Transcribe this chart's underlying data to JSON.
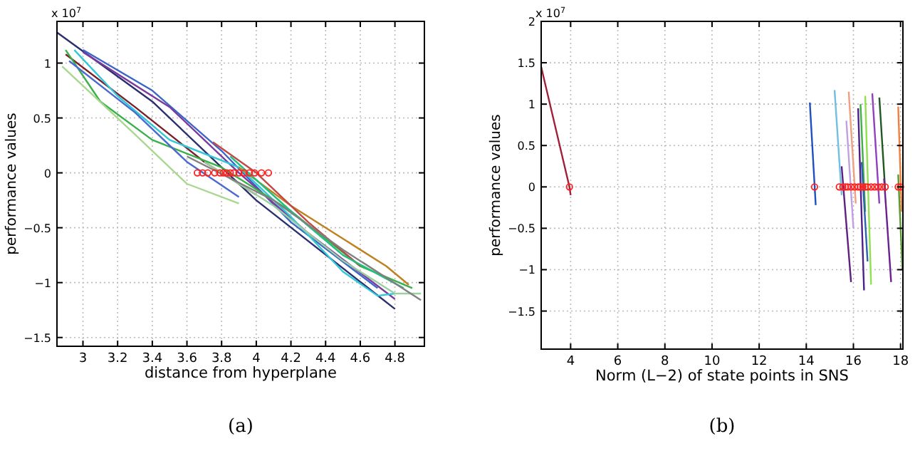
{
  "chart_data": [
    {
      "type": "line",
      "xlabel": "distance from hyperplane",
      "ylabel": "performance values",
      "annotations": [
        "x 10$^{7}$",
        "(a)"
      ],
      "xlim": [
        2.85,
        4.97
      ],
      "ylim": [
        -1.58,
        1.38
      ],
      "xticks": [
        3,
        3.2,
        3.4,
        3.6,
        3.8,
        4,
        4.2,
        4.4,
        4.6,
        4.8
      ],
      "yticks": [
        -1.5,
        -1,
        -0.5,
        0,
        0.5,
        1
      ],
      "grid": true,
      "line_style": "solid",
      "series": [
        {
          "color": "#2b2f6e",
          "x": [
            2.85,
            3.4,
            4.0,
            4.8
          ],
          "values": [
            1.28,
            0.65,
            -0.25,
            -1.24
          ]
        },
        {
          "color": "#3a66c8",
          "x": [
            3.0,
            3.4,
            3.8,
            4.2,
            4.7
          ],
          "values": [
            1.12,
            0.75,
            0.2,
            -0.45,
            -1.05
          ]
        },
        {
          "color": "#7a3aa0",
          "x": [
            3.0,
            3.5,
            3.9,
            4.3,
            4.8
          ],
          "values": [
            1.1,
            0.6,
            0.0,
            -0.55,
            -1.15
          ]
        },
        {
          "color": "#7a1f2a",
          "x": [
            2.9,
            3.3,
            3.7,
            4.0
          ],
          "values": [
            1.08,
            0.6,
            0.1,
            -0.2
          ]
        },
        {
          "color": "#30c8d8",
          "x": [
            2.95,
            3.2,
            3.5,
            3.9,
            4.2,
            4.5,
            4.7,
            4.8
          ],
          "values": [
            1.12,
            0.7,
            0.3,
            0.05,
            -0.4,
            -0.9,
            -1.12,
            -1.1
          ]
        },
        {
          "color": "#3ab04a",
          "x": [
            2.9,
            3.1,
            3.4,
            3.8,
            4.2,
            4.6,
            4.9
          ],
          "values": [
            1.12,
            0.65,
            0.3,
            0.05,
            -0.35,
            -0.85,
            -1.05
          ]
        },
        {
          "color": "#c08020",
          "x": [
            3.9,
            4.2,
            4.5,
            4.75,
            4.88
          ],
          "values": [
            0.05,
            -0.3,
            -0.6,
            -0.85,
            -1.02
          ]
        },
        {
          "color": "#a8d890",
          "x": [
            2.88,
            3.3,
            3.6,
            3.9
          ],
          "values": [
            0.97,
            0.35,
            -0.1,
            -0.28
          ]
        },
        {
          "color": "#9ad0a0",
          "x": [
            3.7,
            4.1,
            4.5,
            4.8,
            4.95
          ],
          "values": [
            0.1,
            -0.3,
            -0.8,
            -1.1,
            -1.1
          ]
        },
        {
          "color": "#4a6ad0",
          "x": [
            2.92,
            3.3,
            3.6,
            3.9
          ],
          "values": [
            1.02,
            0.55,
            0.1,
            -0.22
          ]
        },
        {
          "color": "#c04848",
          "x": [
            3.75,
            4.0,
            4.3,
            4.6
          ],
          "values": [
            0.28,
            0.0,
            -0.45,
            -0.85
          ]
        },
        {
          "color": "#20c080",
          "x": [
            3.85,
            4.2,
            4.5,
            4.85
          ],
          "values": [
            0.15,
            -0.35,
            -0.75,
            -1.05
          ]
        },
        {
          "color": "#808080",
          "x": [
            3.6,
            4.1,
            4.5,
            4.95
          ],
          "values": [
            0.15,
            -0.25,
            -0.7,
            -1.16
          ]
        },
        {
          "type": "scatter",
          "marker": "circle",
          "color": "#ff2020",
          "x": [
            3.66,
            3.69,
            3.72,
            3.76,
            3.79,
            3.81,
            3.83,
            3.85,
            3.87,
            3.9,
            3.93,
            3.96,
            3.99,
            4.03,
            4.07
          ],
          "values": [
            0,
            0,
            0,
            0,
            0,
            0,
            0,
            0,
            0,
            0,
            0,
            0,
            0,
            0,
            0
          ]
        }
      ]
    },
    {
      "type": "line",
      "xlabel": "Norm (L−2) of state points in SNS",
      "ylabel": "performance values",
      "annotations": [
        "x 10$^{7}$",
        "(b)"
      ],
      "xlim": [
        2.75,
        18.1
      ],
      "ylim": [
        -1.96,
        2
      ],
      "xticks": [
        4,
        6,
        8,
        10,
        12,
        14,
        16,
        18
      ],
      "yticks": [
        -1.5,
        -1,
        -0.5,
        0,
        0.5,
        1,
        1.5,
        2
      ],
      "grid": true,
      "line_style": "solid",
      "series": [
        {
          "color": "#a0203a",
          "x": [
            2.75,
            3.95,
            4.0
          ],
          "values": [
            1.45,
            0.0,
            -0.1
          ]
        },
        {
          "color": "#2050c0",
          "x": [
            14.15,
            14.4
          ],
          "values": [
            1.02,
            -0.22
          ]
        },
        {
          "color": "#70c0e0",
          "x": [
            15.2,
            15.5
          ],
          "values": [
            1.17,
            -0.1
          ]
        },
        {
          "color": "#602080",
          "x": [
            15.5,
            15.9
          ],
          "values": [
            0.25,
            -1.15
          ]
        },
        {
          "color": "#f0a080",
          "x": [
            15.8,
            16.1
          ],
          "values": [
            1.15,
            -0.2
          ]
        },
        {
          "color": "#c0a0e0",
          "x": [
            15.7,
            16.0
          ],
          "values": [
            0.8,
            -0.5
          ]
        },
        {
          "color": "#50208a",
          "x": [
            16.2,
            16.45
          ],
          "values": [
            0.95,
            -1.25
          ]
        },
        {
          "color": "#40b040",
          "x": [
            16.3,
            16.5
          ],
          "values": [
            1.0,
            -0.3
          ]
        },
        {
          "color": "#90e050",
          "x": [
            16.5,
            16.75
          ],
          "values": [
            1.1,
            -1.18
          ]
        },
        {
          "color": "#3060b0",
          "x": [
            16.35,
            16.6
          ],
          "values": [
            0.3,
            -0.9
          ]
        },
        {
          "color": "#9040c0",
          "x": [
            16.8,
            17.1
          ],
          "values": [
            1.13,
            -0.2
          ]
        },
        {
          "color": "#205a20",
          "x": [
            17.1,
            17.35
          ],
          "values": [
            1.08,
            -0.05
          ]
        },
        {
          "color": "#6a2090",
          "x": [
            17.3,
            17.6
          ],
          "values": [
            0.1,
            -1.15
          ]
        },
        {
          "color": "#f08040",
          "x": [
            17.9,
            18.05
          ],
          "values": [
            0.97,
            -0.3
          ]
        },
        {
          "color": "#5a9a30",
          "x": [
            17.9,
            18.08
          ],
          "values": [
            0.15,
            -1.0
          ]
        },
        {
          "type": "scatter",
          "marker": "circle",
          "color": "#ff2020",
          "x": [
            3.95,
            14.35,
            15.4,
            15.55,
            15.65,
            15.75,
            15.9,
            16.05,
            16.2,
            16.3,
            16.4,
            16.5,
            16.6,
            16.75,
            16.9,
            17.05,
            17.2,
            17.35,
            17.9,
            18.0
          ],
          "values": [
            0,
            0,
            0,
            0,
            0,
            0,
            0,
            0,
            0,
            0,
            0,
            0,
            0,
            0,
            0,
            0,
            0,
            0,
            0,
            0
          ]
        }
      ]
    }
  ]
}
